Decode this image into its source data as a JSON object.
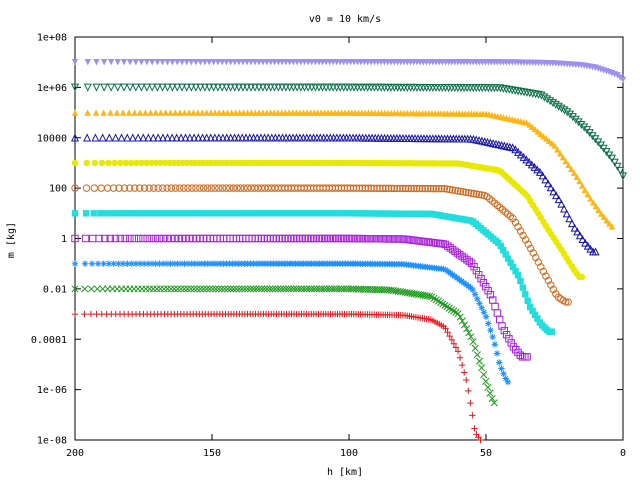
{
  "chart_data": {
    "type": "scatter",
    "title": "v0 = 10 km/s",
    "xlabel": "h [km]",
    "ylabel": "m [kg]",
    "x_reversed": true,
    "xlim": [
      200,
      0
    ],
    "ylim": [
      1e-08,
      100000000.0
    ],
    "yscale": "log",
    "grid": false,
    "legend": "none",
    "xticks": [
      {
        "value": 200,
        "label": "200"
      },
      {
        "value": 150,
        "label": "150"
      },
      {
        "value": 100,
        "label": "100"
      },
      {
        "value": 50,
        "label": "50"
      },
      {
        "value": 0,
        "label": "0"
      }
    ],
    "yticks": [
      {
        "value": 100000000.0,
        "label": "1e+08"
      },
      {
        "value": 1000000.0,
        "label": "1e+06"
      },
      {
        "value": 10000.0,
        "label": "10000"
      },
      {
        "value": 100,
        "label": "100"
      },
      {
        "value": 1,
        "label": "1"
      },
      {
        "value": 0.01,
        "label": "0.01"
      },
      {
        "value": 0.0001,
        "label": "0.0001"
      },
      {
        "value": 1e-06,
        "label": "1e-06"
      },
      {
        "value": 1e-08,
        "label": "1e-08"
      }
    ],
    "series": [
      {
        "marker": "plus",
        "color": "#e41a1c",
        "initial_mass": 0.001,
        "bend_height": 75,
        "end_height": 52,
        "final_mass": 1e-08,
        "points": [
          [
            200,
            0.001
          ],
          [
            150,
            0.001
          ],
          [
            100,
            0.001
          ],
          [
            80,
            0.0009
          ],
          [
            70,
            0.0006
          ],
          [
            65,
            0.0003
          ],
          [
            60,
            3e-05
          ],
          [
            57,
            2e-06
          ],
          [
            55,
            1e-07
          ],
          [
            54,
            2e-08
          ],
          [
            52,
            1e-08
          ]
        ]
      },
      {
        "marker": "cross",
        "color": "#1a9a1a",
        "initial_mass": 0.01,
        "bend_height": 90,
        "end_height": 47,
        "final_mass": 3e-07,
        "points": [
          [
            200,
            0.01
          ],
          [
            150,
            0.01
          ],
          [
            100,
            0.01
          ],
          [
            85,
            0.009
          ],
          [
            70,
            0.005
          ],
          [
            60,
            0.001
          ],
          [
            55,
            0.0001
          ],
          [
            52,
            1e-05
          ],
          [
            50,
            2e-06
          ],
          [
            48,
            5e-07
          ],
          [
            47,
            3e-07
          ]
        ]
      },
      {
        "marker": "star",
        "color": "#1e90ff",
        "initial_mass": 0.1,
        "bend_height": 80,
        "end_height": 42,
        "final_mass": 2e-06,
        "points": [
          [
            200,
            0.1
          ],
          [
            150,
            0.1
          ],
          [
            100,
            0.1
          ],
          [
            80,
            0.095
          ],
          [
            65,
            0.06
          ],
          [
            55,
            0.01
          ],
          [
            50,
            0.0008
          ],
          [
            47,
            8e-05
          ],
          [
            45,
            1e-05
          ],
          [
            43,
            3e-06
          ],
          [
            42,
            2e-06
          ]
        ]
      },
      {
        "marker": "open-square",
        "color": "#aa22dd",
        "initial_mass": 1,
        "bend_height": 75,
        "end_height": 35,
        "final_mass": 2e-05,
        "points": [
          [
            200,
            1
          ],
          [
            150,
            1
          ],
          [
            100,
            1
          ],
          [
            80,
            0.95
          ],
          [
            65,
            0.6
          ],
          [
            55,
            0.1
          ],
          [
            48,
            0.005
          ],
          [
            44,
            0.0003
          ],
          [
            40,
            5e-05
          ],
          [
            37,
            2e-05
          ],
          [
            35,
            2e-05
          ]
        ]
      },
      {
        "marker": "filled-square",
        "color": "#22dddd",
        "initial_mass": 10,
        "bend_height": 65,
        "end_height": 26,
        "final_mass": 0.0002,
        "points": [
          [
            200,
            10
          ],
          [
            150,
            10
          ],
          [
            100,
            10
          ],
          [
            70,
            9.5
          ],
          [
            55,
            5
          ],
          [
            45,
            0.6
          ],
          [
            38,
            0.03
          ],
          [
            34,
            0.002
          ],
          [
            30,
            0.0004
          ],
          [
            27,
            0.0002
          ],
          [
            26,
            0.0002
          ]
        ]
      },
      {
        "marker": "open-circle",
        "color": "#d2691e",
        "initial_mass": 100,
        "bend_height": 60,
        "end_height": 20,
        "final_mass": 0.003,
        "points": [
          [
            200,
            100
          ],
          [
            150,
            100
          ],
          [
            100,
            100
          ],
          [
            65,
            95
          ],
          [
            50,
            50
          ],
          [
            40,
            6
          ],
          [
            33,
            0.3
          ],
          [
            28,
            0.03
          ],
          [
            24,
            0.005
          ],
          [
            21,
            0.003
          ],
          [
            20,
            0.003
          ]
        ]
      },
      {
        "marker": "filled-circle",
        "color": "#e8e800",
        "initial_mass": 1000,
        "bend_height": 55,
        "end_height": 15,
        "final_mass": 0.03,
        "points": [
          [
            200,
            1000
          ],
          [
            150,
            1000
          ],
          [
            100,
            1000
          ],
          [
            60,
            950
          ],
          [
            45,
            500
          ],
          [
            35,
            50
          ],
          [
            28,
            3
          ],
          [
            22,
            0.3
          ],
          [
            18,
            0.06
          ],
          [
            16,
            0.03
          ],
          [
            15,
            0.03
          ]
        ]
      },
      {
        "marker": "open-triangle",
        "color": "#1515aa",
        "initial_mass": 10000,
        "bend_height": 50,
        "end_height": 10,
        "final_mass": 0.3,
        "points": [
          [
            200,
            10000
          ],
          [
            150,
            10000
          ],
          [
            100,
            10000
          ],
          [
            55,
            9000
          ],
          [
            40,
            4000
          ],
          [
            30,
            400
          ],
          [
            23,
            30
          ],
          [
            18,
            3
          ],
          [
            14,
            0.7
          ],
          [
            11,
            0.3
          ],
          [
            10,
            0.3
          ]
        ]
      },
      {
        "marker": "filled-triangle",
        "color": "#ffb515",
        "initial_mass": 100000,
        "bend_height": 45,
        "end_height": 4,
        "final_mass": 3,
        "points": [
          [
            200,
            100000
          ],
          [
            150,
            100000
          ],
          [
            100,
            100000
          ],
          [
            50,
            90000
          ],
          [
            35,
            40000
          ],
          [
            25,
            5000
          ],
          [
            17,
            300
          ],
          [
            12,
            40
          ],
          [
            8,
            10
          ],
          [
            5,
            4
          ],
          [
            4,
            3
          ]
        ]
      },
      {
        "marker": "open-inverted-triangle",
        "color": "#0a6e45",
        "initial_mass": 1000000,
        "bend_height": 40,
        "end_height": 0,
        "final_mass": 300,
        "points": [
          [
            200,
            1000000
          ],
          [
            150,
            1000000
          ],
          [
            100,
            1000000
          ],
          [
            45,
            950000
          ],
          [
            30,
            500000
          ],
          [
            20,
            100000
          ],
          [
            13,
            20000
          ],
          [
            8,
            5000
          ],
          [
            4,
            1500
          ],
          [
            1,
            500
          ],
          [
            0,
            300
          ]
        ]
      },
      {
        "marker": "filled-inverted-triangle",
        "color": "#9f8fef",
        "initial_mass": 10000000,
        "bend_height": 30,
        "end_height": 0,
        "final_mass": 2000000,
        "points": [
          [
            200,
            10000000
          ],
          [
            150,
            10000000
          ],
          [
            100,
            10000000
          ],
          [
            40,
            9800000
          ],
          [
            25,
            9000000
          ],
          [
            15,
            7500000
          ],
          [
            10,
            6000000
          ],
          [
            5,
            4000000
          ],
          [
            2,
            3000000
          ],
          [
            0,
            2000000
          ]
        ]
      }
    ]
  }
}
